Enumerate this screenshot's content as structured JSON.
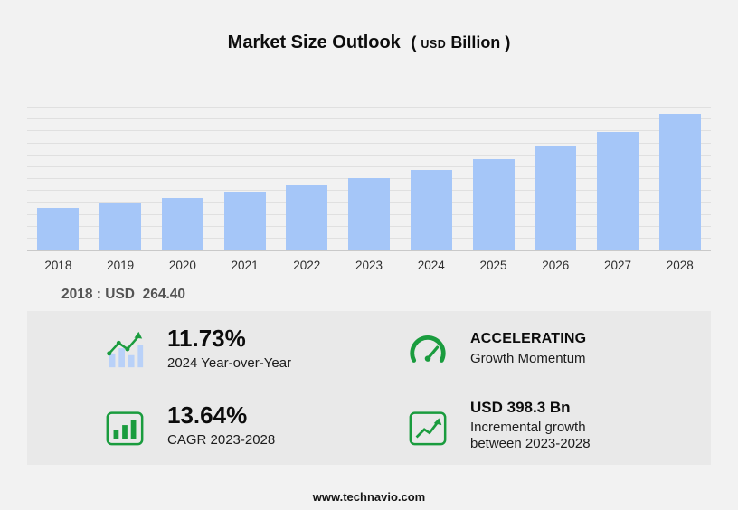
{
  "header": {
    "title": "Market Size Outlook",
    "unit_open": "(",
    "unit_currency": "USD",
    "unit_scale": "Billion",
    "unit_close": ")"
  },
  "chart_data": {
    "type": "bar",
    "title": "Market Size Outlook (USD Billion)",
    "categories": [
      "2018",
      "2019",
      "2020",
      "2021",
      "2022",
      "2023",
      "2024",
      "2025",
      "2026",
      "2027",
      "2028"
    ],
    "values": [
      264.4,
      293,
      325,
      361,
      400,
      445,
      497,
      564,
      641,
      729,
      843
    ],
    "xlabel": "",
    "ylabel": "USD Billion",
    "ylim": [
      0,
      880
    ],
    "grid": true,
    "gridline_count": 12,
    "legend": "none",
    "bar_color": "#a5c6f8",
    "annotations": [
      "2018 : USD 264.40"
    ]
  },
  "annotation": {
    "text": "2018 : USD  264.40"
  },
  "stats": {
    "yoy": {
      "value": "11.73%",
      "label": "2024 Year-over-Year"
    },
    "momentum": {
      "value": "ACCELERATING",
      "label": "Growth Momentum"
    },
    "cagr": {
      "value": "13.64%",
      "label": "CAGR 2023-2028"
    },
    "incremental": {
      "value": "USD 398.3 Bn",
      "label1": "Incremental growth",
      "label2": "between 2023-2028"
    }
  },
  "colors": {
    "accent_green": "#1a9c3e",
    "bar_blue": "#a5c6f8",
    "panel_gray": "#e9e9e9",
    "background": "#f2f2f2"
  },
  "footer": {
    "url": "www.technavio.com"
  }
}
